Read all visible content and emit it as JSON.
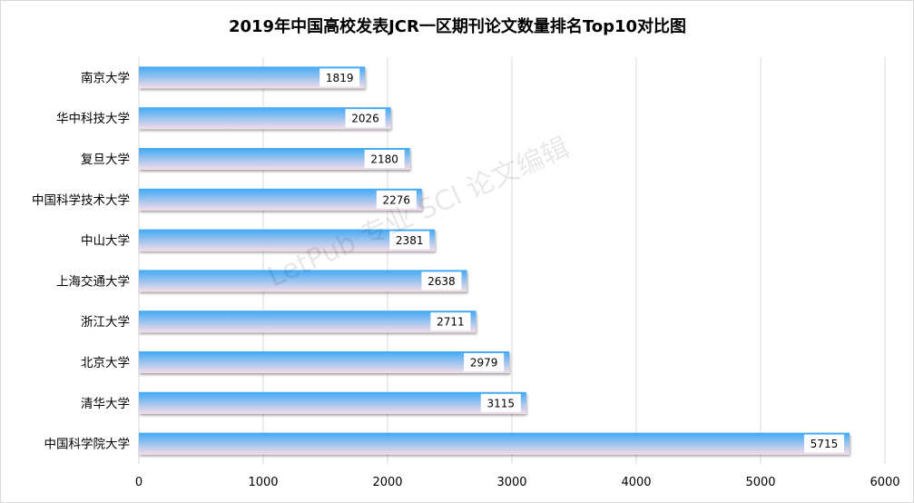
{
  "chart_data": {
    "type": "bar",
    "orientation": "horizontal",
    "title": "2019年中国高校发表JCR一区期刊论文数量排名Top10对比图",
    "categories": [
      "南京大学",
      "华中科技大学",
      "复旦大学",
      "中国科学技术大学",
      "中山大学",
      "上海交通大学",
      "浙江大学",
      "北京大学",
      "清华大学",
      "中国科学院大学"
    ],
    "values": [
      1819,
      2026,
      2180,
      2276,
      2381,
      2638,
      2711,
      2979,
      3115,
      5715
    ],
    "xlim": [
      0,
      6000
    ],
    "xticks": [
      0,
      1000,
      2000,
      3000,
      4000,
      5000,
      6000
    ],
    "xlabel": "",
    "ylabel": "",
    "grid": "vertical",
    "data_labels": true,
    "colors": {
      "bar_top": "#3fa9f5",
      "bar_bottom": "#f6dde9",
      "grid": "#d9d9d9"
    }
  },
  "watermark": "LetPub 专业 SCI 论文编辑"
}
